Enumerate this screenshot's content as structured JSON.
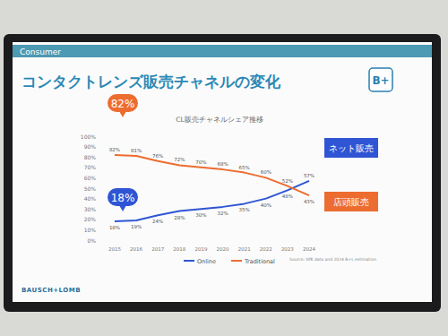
{
  "slide": {
    "section": "Consumer",
    "brand": "BAUSCH+LOMB",
    "logo": "B+",
    "source": "Source: GfK data and 2024 B+L estimation"
  },
  "chart_data": {
    "type": "line",
    "title": "コンタクトレンズ販売チャネルの変化",
    "subtitle": "CL販売チャネルシェア推移",
    "categories": [
      "2015",
      "2016",
      "2017",
      "2018",
      "2019",
      "2020",
      "2021",
      "2022",
      "2023",
      "2024"
    ],
    "series": [
      {
        "name": "Online",
        "color": "#2f55d4",
        "values": [
          18,
          19,
          24,
          28,
          30,
          32,
          35,
          40,
          48,
          57
        ],
        "value_labels": [
          "18%",
          "19%",
          "24%",
          "28%",
          "30%",
          "32%",
          "35%",
          "40%",
          "48%",
          "57%"
        ]
      },
      {
        "name": "Traditional",
        "color": "#ed6c2f",
        "values": [
          82,
          81,
          76,
          72,
          70,
          68,
          65,
          60,
          52,
          43
        ],
        "value_labels": [
          "82%",
          "81%",
          "76%",
          "72%",
          "70%",
          "68%",
          "65%",
          "60%",
          "52%",
          "43%"
        ]
      }
    ],
    "ylim": [
      0,
      100
    ],
    "yticks": [
      {
        "value": 0,
        "label": "0%"
      },
      {
        "value": 10,
        "label": "10%"
      },
      {
        "value": 20,
        "label": "20%"
      },
      {
        "value": 30,
        "label": "30%"
      },
      {
        "value": 40,
        "label": "40%"
      },
      {
        "value": 50,
        "label": "50%"
      },
      {
        "value": 60,
        "label": "60%"
      },
      {
        "value": 70,
        "label": "70%"
      },
      {
        "value": 80,
        "label": "80%"
      },
      {
        "value": 90,
        "label": "90%"
      },
      {
        "value": 100,
        "label": "100%"
      }
    ],
    "grid": false,
    "legend": "bottom",
    "data_labels": true,
    "annotations": [
      "82%",
      "18%",
      "ネット販売",
      "店頭販売"
    ]
  }
}
